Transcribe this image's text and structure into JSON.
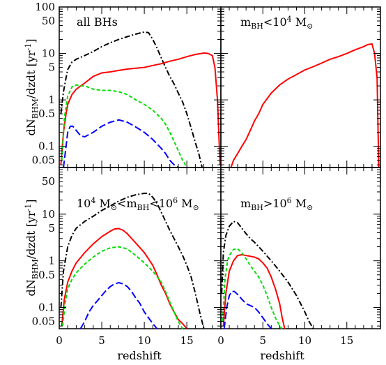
{
  "chart_data": {
    "type": "line",
    "ylabel": "dN_BHM/dzdt [yr^-1]",
    "ylabel_parts": {
      "main": "dN",
      "sub": "BHM",
      "rest": "/dzdt  [yr",
      "sup": "-1",
      "end": "]"
    },
    "xlabel": "redshift",
    "x_ticks": [
      "0",
      "5",
      "10",
      "15"
    ],
    "y_ticks_top": [
      "100",
      "50",
      "10",
      "5",
      "1",
      "0.5",
      "0.1",
      "0.05"
    ],
    "y_ticks_bottom": [
      "50",
      "10",
      "5",
      "1",
      "0.5",
      "0.1",
      "0.05"
    ],
    "xlim": [
      0,
      19
    ],
    "ylim": [
      0.035,
      100
    ],
    "yscale": "log",
    "series_styles": [
      {
        "key": "A",
        "color": "#000000",
        "dash": "8 3 2 3"
      },
      {
        "key": "B",
        "color": "#ff0000",
        "dash": ""
      },
      {
        "key": "C",
        "color": "#00e000",
        "dash": "5 3"
      },
      {
        "key": "D",
        "color": "#0000ff",
        "dash": "10 4"
      }
    ],
    "panels": [
      {
        "id": "top-left",
        "label": "all BHs",
        "series": [
          {
            "style": "A",
            "x": [
              0.2,
              0.5,
              0.8,
              1.0,
              1.5,
              2.0,
              3.0,
              4.0,
              5.0,
              6.0,
              7.0,
              8.0,
              9.0,
              10.0,
              10.5,
              11.0,
              11.5,
              12.0,
              12.5,
              13.0,
              13.5,
              14.0,
              14.5,
              15.0,
              15.5,
              16.0,
              16.4,
              16.8
            ],
            "y": [
              0.5,
              1.5,
              3.0,
              4.5,
              6.5,
              7.5,
              9.0,
              11.0,
              14.0,
              17.0,
              20.0,
              23.0,
              26.0,
              29.0,
              28.0,
              20.0,
              13.0,
              8.0,
              5.0,
              3.2,
              2.2,
              1.4,
              0.9,
              0.5,
              0.25,
              0.12,
              0.07,
              0.035
            ]
          },
          {
            "style": "B",
            "x": [
              0.2,
              0.5,
              0.8,
              1.0,
              1.5,
              2.0,
              3.0,
              4.0,
              5.0,
              6.0,
              7.0,
              8.0,
              9.0,
              10.0,
              11.0,
              12.0,
              13.0,
              14.0,
              15.0,
              16.0,
              17.0,
              17.5,
              18.0,
              18.3,
              18.6,
              18.9
            ],
            "y": [
              0.04,
              0.2,
              0.5,
              0.8,
              1.3,
              1.7,
              2.3,
              3.2,
              3.8,
              4.0,
              4.3,
              4.6,
              4.8,
              5.0,
              5.5,
              6.0,
              6.8,
              7.5,
              8.5,
              9.5,
              10.2,
              10.0,
              9.0,
              5.0,
              1.0,
              0.04
            ]
          },
          {
            "style": "C",
            "x": [
              0.3,
              0.6,
              1.0,
              1.5,
              2.0,
              2.5,
              3.0,
              4.0,
              5.0,
              6.0,
              7.0,
              8.0,
              9.0,
              10.0,
              11.0,
              12.0,
              12.5,
              13.0,
              13.5,
              14.0,
              14.5,
              15.0
            ],
            "y": [
              0.05,
              0.4,
              1.2,
              1.9,
              2.1,
              2.0,
              2.0,
              1.7,
              1.6,
              1.6,
              1.5,
              1.3,
              1.0,
              0.8,
              0.6,
              0.4,
              0.3,
              0.2,
              0.13,
              0.08,
              0.05,
              0.035
            ]
          },
          {
            "style": "D",
            "x": [
              0.5,
              0.8,
              1.0,
              1.3,
              1.6,
              2.0,
              2.5,
              3.0,
              3.5,
              4.0,
              5.0,
              6.0,
              7.0,
              8.0,
              9.0,
              10.0,
              11.0,
              12.0,
              12.5,
              13.0,
              13.5,
              14.0
            ],
            "y": [
              0.035,
              0.1,
              0.2,
              0.27,
              0.27,
              0.22,
              0.17,
              0.16,
              0.18,
              0.2,
              0.27,
              0.33,
              0.37,
              0.33,
              0.26,
              0.2,
              0.14,
              0.09,
              0.07,
              0.05,
              0.04,
              0.035
            ]
          }
        ]
      },
      {
        "id": "top-right",
        "label_parts": {
          "pre": "m",
          "sub": "BH",
          "mid": "<10",
          "sup": "4",
          "post": " M",
          "sub2": "⊙"
        },
        "series": [
          {
            "style": "B",
            "x": [
              1.2,
              1.5,
              2.0,
              2.5,
              3.0,
              3.5,
              4.0,
              4.5,
              5.0,
              6.0,
              7.0,
              8.0,
              9.0,
              10.0,
              11.0,
              12.0,
              13.0,
              14.0,
              15.0,
              16.0,
              17.0,
              17.5,
              18.0,
              18.3,
              18.6,
              18.8
            ],
            "y": [
              0.035,
              0.05,
              0.07,
              0.1,
              0.14,
              0.22,
              0.35,
              0.5,
              0.8,
              1.4,
              2.1,
              2.8,
              3.5,
              4.4,
              5.2,
              6.2,
              7.5,
              8.5,
              10.0,
              12.0,
              14.0,
              15.5,
              16.0,
              10.0,
              3.0,
              0.035
            ]
          }
        ]
      },
      {
        "id": "bottom-left",
        "label_parts": {
          "pre": "10",
          "sup": "4",
          "mid1": " M",
          "sub": "⊙",
          "mid2": "<m",
          "sub2": "BH",
          "mid3": "<10",
          "sup2": "6",
          "post": " M",
          "sub3": "⊙"
        },
        "series": [
          {
            "style": "A",
            "x": [
              0.2,
              0.5,
              1.0,
              1.5,
              2.0,
              3.0,
              4.0,
              5.0,
              6.0,
              7.0,
              8.0,
              9.0,
              10.0,
              10.5,
              11.0,
              11.5,
              12.0,
              12.5,
              13.0,
              13.5,
              14.0,
              14.5,
              15.0,
              15.5,
              16.0,
              16.5,
              17.0
            ],
            "y": [
              0.1,
              0.6,
              2.0,
              3.5,
              5.0,
              7.0,
              9.0,
              12.0,
              15.0,
              19.0,
              23.0,
              26.0,
              28.0,
              28.0,
              23.0,
              17.0,
              11.0,
              7.0,
              4.5,
              3.0,
              2.0,
              1.3,
              0.8,
              0.45,
              0.2,
              0.08,
              0.035
            ]
          },
          {
            "style": "B",
            "x": [
              0.3,
              0.6,
              1.0,
              1.5,
              2.0,
              3.0,
              4.0,
              5.0,
              6.0,
              6.5,
              7.0,
              7.5,
              8.0,
              9.0,
              10.0,
              11.0,
              11.5,
              12.0,
              12.5,
              13.0,
              13.5,
              14.0,
              14.5,
              15.0
            ],
            "y": [
              0.04,
              0.15,
              0.35,
              0.6,
              0.9,
              1.5,
              2.3,
              3.3,
              4.3,
              4.8,
              4.9,
              4.5,
              3.8,
              2.4,
              1.5,
              0.8,
              0.5,
              0.3,
              0.2,
              0.12,
              0.08,
              0.055,
              0.045,
              0.035
            ]
          },
          {
            "style": "C",
            "x": [
              0.4,
              0.7,
              1.0,
              1.5,
              2.0,
              3.0,
              4.0,
              5.0,
              6.0,
              7.0,
              8.0,
              9.0,
              10.0,
              11.0,
              12.0,
              12.5,
              13.0,
              13.5,
              14.0,
              14.5
            ],
            "y": [
              0.04,
              0.12,
              0.25,
              0.4,
              0.55,
              0.85,
              1.2,
              1.6,
              1.9,
              2.0,
              1.8,
              1.3,
              0.9,
              0.6,
              0.35,
              0.22,
              0.13,
              0.08,
              0.05,
              0.035
            ]
          },
          {
            "style": "D",
            "x": [
              2.5,
              3.0,
              3.5,
              4.0,
              4.5,
              5.0,
              5.5,
              6.0,
              6.5,
              7.0,
              7.5,
              8.0,
              8.5,
              9.0,
              9.5,
              10.0,
              10.5,
              11.0,
              11.5
            ],
            "y": [
              0.035,
              0.05,
              0.08,
              0.11,
              0.14,
              0.18,
              0.23,
              0.28,
              0.32,
              0.34,
              0.32,
              0.28,
              0.22,
              0.16,
              0.12,
              0.08,
              0.06,
              0.045,
              0.035
            ]
          }
        ]
      },
      {
        "id": "bottom-right",
        "label_parts": {
          "pre": "m",
          "sub": "BH",
          "mid": ">10",
          "sup": "6",
          "post": " M",
          "sub2": "⊙"
        },
        "series": [
          {
            "style": "A",
            "x": [
              0.1,
              0.3,
              0.6,
              1.0,
              1.5,
              2.0,
              2.5,
              3.0,
              3.5,
              4.0,
              5.0,
              6.0,
              7.0,
              8.0,
              9.0,
              10.0,
              10.5,
              11.0
            ],
            "y": [
              0.2,
              1.5,
              3.5,
              5.5,
              7.0,
              6.5,
              5.0,
              3.8,
              3.0,
              2.5,
              1.6,
              1.0,
              0.6,
              0.35,
              0.18,
              0.08,
              0.05,
              0.035
            ]
          },
          {
            "style": "B",
            "x": [
              0.3,
              0.6,
              1.0,
              1.5,
              2.0,
              2.5,
              3.0,
              3.5,
              4.0,
              4.5,
              5.0,
              5.5,
              6.0,
              6.5,
              7.0,
              7.3,
              7.6
            ],
            "y": [
              0.04,
              0.2,
              0.6,
              1.0,
              1.3,
              1.35,
              1.3,
              1.25,
              1.2,
              1.1,
              0.9,
              0.7,
              0.45,
              0.25,
              0.12,
              0.06,
              0.035
            ]
          },
          {
            "style": "C",
            "x": [
              0.2,
              0.5,
              0.8,
              1.0,
              1.5,
              2.0,
              2.5,
              3.0,
              3.5,
              4.0,
              4.5,
              5.0,
              5.5,
              6.0,
              6.5,
              7.0,
              7.3
            ],
            "y": [
              0.05,
              0.4,
              1.0,
              1.3,
              1.75,
              1.8,
              1.5,
              1.1,
              0.8,
              0.6,
              0.45,
              0.3,
              0.18,
              0.1,
              0.06,
              0.04,
              0.035
            ]
          },
          {
            "style": "D",
            "x": [
              0.4,
              0.7,
              1.0,
              1.3,
              1.6,
              2.0,
              2.5,
              3.0,
              3.5,
              4.0,
              4.5,
              5.0,
              5.5,
              6.0
            ],
            "y": [
              0.035,
              0.1,
              0.18,
              0.22,
              0.22,
              0.19,
              0.15,
              0.12,
              0.11,
              0.1,
              0.08,
              0.06,
              0.045,
              0.035
            ]
          }
        ]
      }
    ]
  }
}
